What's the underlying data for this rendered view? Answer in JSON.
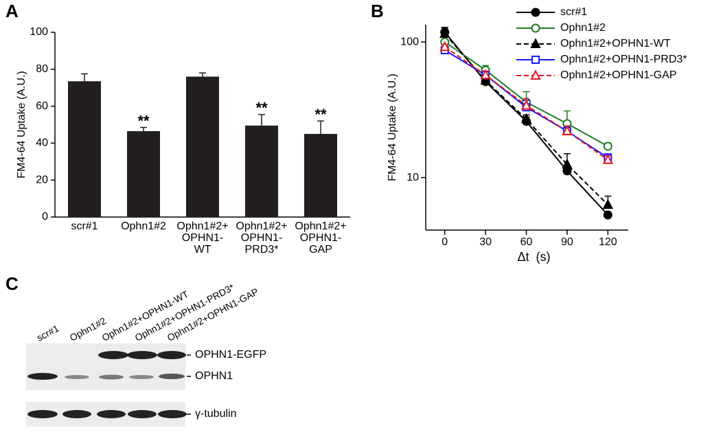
{
  "panel_labels": [
    "A",
    "B",
    "C"
  ],
  "chart_data": [
    {
      "type": "bar",
      "ylabel": "FM4-64 Uptake (A.U.)",
      "categories": [
        [
          "scr#1"
        ],
        [
          "Ophn1#2"
        ],
        [
          "Ophn1#2+",
          "OPHN1-",
          "WT"
        ],
        [
          "Ophn1#2+",
          "OPHN1-",
          "PRD3*"
        ],
        [
          "Ophn1#2+",
          "OPHN1-",
          "GAP"
        ]
      ],
      "values": [
        73.5,
        46.5,
        76,
        49.5,
        45
      ],
      "errors": [
        4,
        2,
        2,
        6,
        7
      ],
      "significance": [
        null,
        "**",
        null,
        "**",
        "**"
      ],
      "color": "#231f20",
      "ylim": [
        0,
        100
      ],
      "yticks": [
        0,
        20,
        40,
        60,
        80,
        100
      ]
    },
    {
      "type": "line",
      "ylabel": "FM4-64 Uptake (A.U.)",
      "xlabel": "Δt  (s)",
      "log_y": true,
      "x": [
        0,
        30,
        60,
        90,
        120
      ],
      "xlim": [
        -14,
        135
      ],
      "xticks": [
        0,
        30,
        60,
        90,
        120
      ],
      "ylim": [
        4.1,
        134
      ],
      "yticks": [
        10,
        100
      ],
      "legend": "upper right",
      "series": [
        {
          "name": "scr#1",
          "color": "#000000",
          "dash": false,
          "marker": "circle",
          "values": [
            118,
            51,
            26,
            11.2,
            5.3
          ],
          "errors": [
            10,
            3,
            2,
            1,
            0
          ]
        },
        {
          "name": "Ophn1#2",
          "color": "#1e7a1e",
          "dash": false,
          "marker": "circle-open",
          "values": [
            100,
            62,
            36,
            25,
            17
          ],
          "errors": [
            4,
            5,
            7,
            6,
            1
          ]
        },
        {
          "name": "Ophn1#2+OPHN1-WT",
          "color": "#000000",
          "dash": true,
          "marker": "triangle",
          "values": [
            115,
            52,
            27,
            12.5,
            6.3
          ],
          "errors": [
            12,
            3,
            2,
            2.5,
            1
          ]
        },
        {
          "name": "Ophn1#2+OPHN1-PRD3*",
          "color": "#1a1aff",
          "dash": false,
          "marker": "square-open",
          "values": [
            87,
            57,
            33,
            22,
            14
          ],
          "errors": [
            3,
            4,
            4,
            2,
            1
          ]
        },
        {
          "name": "Ophn1#2+OPHN1-GAP",
          "color": "#e8141c",
          "dash": true,
          "marker": "triangle-open",
          "values": [
            92,
            57,
            34,
            22,
            13.5
          ],
          "errors": [
            3,
            4,
            4,
            2,
            1
          ]
        }
      ]
    }
  ],
  "blot": {
    "lanes": [
      "scr#1",
      "Ophn1#2",
      "Ophn1#2+OPHN1-WT",
      "Ophn1#2+OPHN1-PRD3*",
      "Ophn1#2+OPHN1-GAP"
    ],
    "bands": [
      "OPHN1-EGFP",
      "OPHN1",
      "γ-tubulin"
    ]
  }
}
